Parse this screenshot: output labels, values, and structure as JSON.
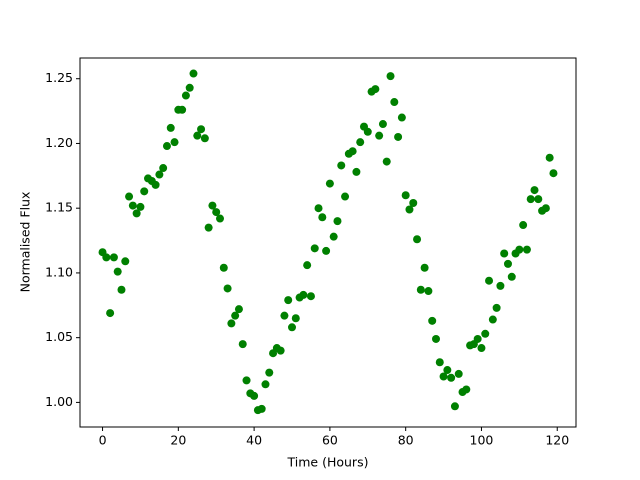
{
  "chart_data": {
    "type": "scatter",
    "color": "#008000",
    "x_label": "Time (Hours)",
    "y_label": "Normalised Flux",
    "x": [
      0,
      1,
      2,
      3,
      4,
      5,
      6,
      7,
      8,
      9,
      10,
      11,
      12,
      13,
      14,
      15,
      16,
      17,
      18,
      19,
      20,
      21,
      22,
      23,
      24,
      25,
      26,
      27,
      28,
      29,
      30,
      31,
      32,
      33,
      34,
      35,
      36,
      37,
      38,
      39,
      40,
      41,
      42,
      43,
      44,
      45,
      46,
      47,
      48,
      49,
      50,
      51,
      52,
      53,
      54,
      55,
      56,
      57,
      58,
      59,
      60,
      61,
      62,
      63,
      64,
      65,
      66,
      67,
      68,
      69,
      70,
      71,
      72,
      73,
      74,
      75,
      76,
      77,
      78,
      79,
      80,
      81,
      82,
      83,
      84,
      85,
      86,
      87,
      88,
      89,
      90,
      91,
      92,
      93,
      94,
      95,
      96,
      97,
      98,
      99,
      100,
      101,
      102,
      103,
      104,
      105,
      106,
      107,
      108,
      109,
      110,
      111,
      112,
      113,
      114,
      115,
      116,
      117,
      118,
      119
    ],
    "values": [
      1.116,
      1.112,
      1.069,
      1.112,
      1.101,
      1.087,
      1.109,
      1.159,
      1.152,
      1.146,
      1.151,
      1.163,
      1.173,
      1.171,
      1.168,
      1.176,
      1.181,
      1.198,
      1.212,
      1.201,
      1.226,
      1.226,
      1.237,
      1.243,
      1.254,
      1.206,
      1.211,
      1.204,
      1.135,
      1.152,
      1.147,
      1.142,
      1.104,
      1.088,
      1.061,
      1.067,
      1.072,
      1.045,
      1.017,
      1.007,
      1.005,
      0.994,
      0.995,
      1.014,
      1.023,
      1.038,
      1.042,
      1.04,
      1.067,
      1.079,
      1.058,
      1.065,
      1.081,
      1.083,
      1.106,
      1.082,
      1.119,
      1.15,
      1.143,
      1.117,
      1.169,
      1.128,
      1.14,
      1.183,
      1.159,
      1.192,
      1.194,
      1.178,
      1.201,
      1.213,
      1.209,
      1.24,
      1.242,
      1.206,
      1.215,
      1.186,
      1.252,
      1.232,
      1.205,
      1.22,
      1.16,
      1.149,
      1.154,
      1.126,
      1.087,
      1.104,
      1.086,
      1.063,
      1.049,
      1.031,
      1.02,
      1.025,
      1.019,
      0.997,
      1.022,
      1.008,
      1.01,
      1.044,
      1.045,
      1.049,
      1.042,
      1.053,
      1.094,
      1.064,
      1.073,
      1.09,
      1.115,
      1.107,
      1.097,
      1.115,
      1.118,
      1.137,
      1.118,
      1.157,
      1.164,
      1.157,
      1.148,
      1.15,
      1.189,
      1.177
    ],
    "xlim": [
      -5.95,
      124.95
    ],
    "ylim": [
      0.981,
      1.266
    ],
    "xticks": [
      0,
      20,
      40,
      60,
      80,
      100,
      120
    ],
    "yticks": [
      {
        "value": 1,
        "label": "1.00"
      },
      {
        "value": 1.05,
        "label": "1.05"
      },
      {
        "value": 1.1,
        "label": "1.10"
      },
      {
        "value": 1.15,
        "label": "1.15"
      },
      {
        "value": 1.2,
        "label": "1.20"
      },
      {
        "value": 1.25,
        "label": "1.25"
      }
    ]
  }
}
